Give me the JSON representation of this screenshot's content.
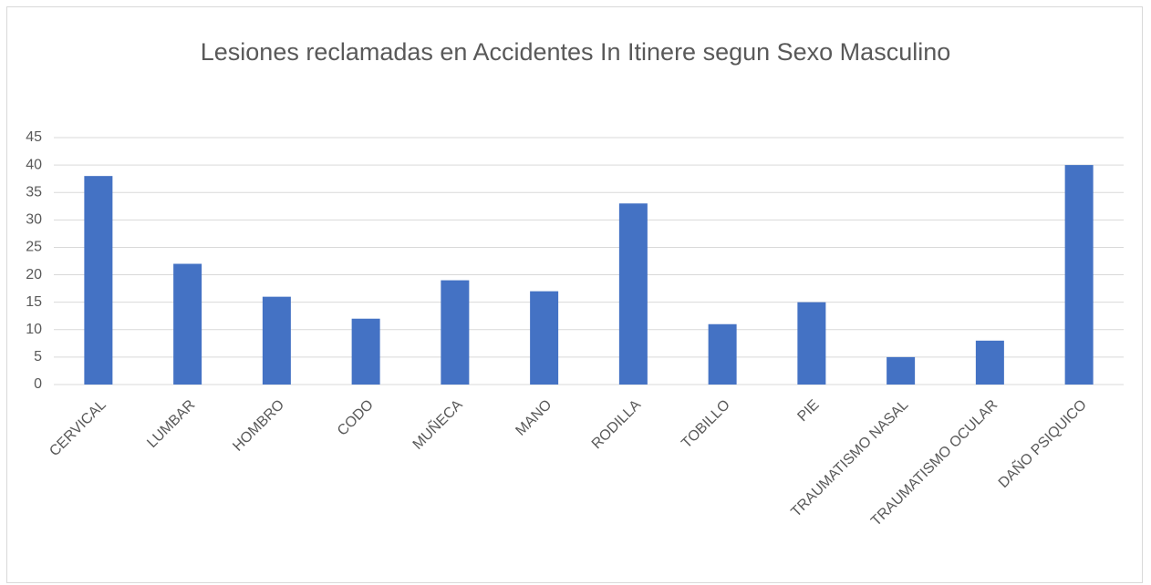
{
  "chart_data": {
    "type": "bar",
    "title": "Lesiones reclamadas en Accidentes In Itinere segun Sexo Masculino",
    "categories": [
      "CERVICAL",
      "LUMBAR",
      "HOMBRO",
      "CODO",
      "MUÑECA",
      "MANO",
      "RODILLA",
      "TOBILLO",
      "PIE",
      "TRAUMATISMO NASAL",
      "TRAUMATISMO OCULAR",
      "DAÑO PSIQUICO"
    ],
    "values": [
      38,
      22,
      16,
      12,
      19,
      17,
      33,
      11,
      15,
      5,
      8,
      40
    ],
    "color": "#4472c4",
    "ylim": [
      0,
      45
    ],
    "yticks": [
      0,
      5,
      10,
      15,
      20,
      25,
      30,
      35,
      40,
      45
    ],
    "grid": true
  }
}
